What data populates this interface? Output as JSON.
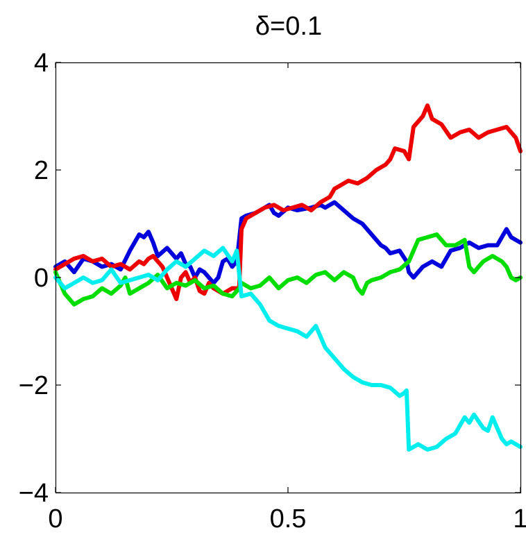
{
  "chart_data": {
    "type": "line",
    "title": "δ=0.1",
    "xlabel": "",
    "ylabel": "",
    "xlim": [
      0,
      1
    ],
    "ylim": [
      -4,
      4
    ],
    "xticks": [
      0,
      0.5,
      1
    ],
    "xtick_labels": [
      "0",
      "0.5",
      "1"
    ],
    "yticks": [
      -4,
      -2,
      0,
      2,
      4
    ],
    "ytick_labels": [
      "−4",
      "−2",
      "0",
      "2",
      "4"
    ],
    "grid": false,
    "legend": "none",
    "series": [
      {
        "color": "#0000dd",
        "x": [
          0,
          0.02,
          0.04,
          0.06,
          0.08,
          0.1,
          0.12,
          0.14,
          0.16,
          0.18,
          0.19,
          0.2,
          0.21,
          0.22,
          0.24,
          0.26,
          0.27,
          0.28,
          0.29,
          0.3,
          0.31,
          0.32,
          0.34,
          0.35,
          0.36,
          0.37,
          0.38,
          0.39,
          0.4,
          0.41,
          0.43,
          0.45,
          0.46,
          0.47,
          0.48,
          0.5,
          0.52,
          0.55,
          0.57,
          0.58,
          0.6,
          0.62,
          0.64,
          0.66,
          0.68,
          0.7,
          0.71,
          0.72,
          0.74,
          0.755,
          0.76,
          0.77,
          0.79,
          0.81,
          0.83,
          0.85,
          0.87,
          0.89,
          0.91,
          0.93,
          0.95,
          0.96,
          0.97,
          0.98,
          0.99,
          1.0
        ],
        "y": [
          0.2,
          0.3,
          0.1,
          0.35,
          0.3,
          0.2,
          0.25,
          0.15,
          0.5,
          0.8,
          0.75,
          0.85,
          0.65,
          0.4,
          0.55,
          0.35,
          0.45,
          0.25,
          0.2,
          0.0,
          0.15,
          0.1,
          -0.1,
          0.0,
          0.3,
          0.35,
          0.2,
          0.3,
          1.1,
          1.15,
          1.2,
          1.3,
          1.35,
          1.2,
          1.15,
          1.3,
          1.25,
          1.3,
          1.35,
          1.3,
          1.4,
          1.25,
          1.1,
          1.0,
          0.8,
          0.6,
          0.55,
          0.45,
          0.5,
          0.3,
          0.1,
          0.0,
          0.2,
          0.3,
          0.2,
          0.5,
          0.55,
          0.65,
          0.55,
          0.6,
          0.6,
          0.75,
          0.9,
          0.75,
          0.7,
          0.65
        ]
      },
      {
        "color": "#ee0000",
        "x": [
          0,
          0.02,
          0.04,
          0.06,
          0.08,
          0.1,
          0.12,
          0.14,
          0.16,
          0.18,
          0.19,
          0.2,
          0.21,
          0.22,
          0.23,
          0.24,
          0.25,
          0.26,
          0.27,
          0.28,
          0.29,
          0.3,
          0.31,
          0.32,
          0.33,
          0.34,
          0.36,
          0.38,
          0.395,
          0.4,
          0.41,
          0.43,
          0.45,
          0.47,
          0.49,
          0.51,
          0.53,
          0.55,
          0.57,
          0.59,
          0.6,
          0.61,
          0.63,
          0.65,
          0.67,
          0.69,
          0.71,
          0.72,
          0.73,
          0.75,
          0.76,
          0.77,
          0.79,
          0.8,
          0.81,
          0.83,
          0.85,
          0.87,
          0.89,
          0.91,
          0.93,
          0.95,
          0.97,
          0.99,
          1.0
        ],
        "y": [
          0.15,
          0.25,
          0.35,
          0.4,
          0.3,
          0.35,
          0.2,
          0.25,
          0.15,
          0.3,
          0.25,
          0.35,
          0.4,
          0.3,
          0.2,
          0.0,
          -0.2,
          -0.4,
          0.0,
          0.1,
          -0.1,
          0.0,
          -0.25,
          -0.3,
          -0.1,
          -0.2,
          -0.3,
          -0.2,
          -0.2,
          0.9,
          1.1,
          1.2,
          1.3,
          1.35,
          1.25,
          1.3,
          1.35,
          1.25,
          1.4,
          1.5,
          1.65,
          1.7,
          1.8,
          1.75,
          1.85,
          2.0,
          2.1,
          2.2,
          2.4,
          2.35,
          2.2,
          2.8,
          3.0,
          3.2,
          2.95,
          2.85,
          2.6,
          2.7,
          2.75,
          2.6,
          2.7,
          2.75,
          2.8,
          2.6,
          2.35
        ]
      },
      {
        "color": "#00dd00",
        "x": [
          0,
          0.01,
          0.02,
          0.04,
          0.06,
          0.08,
          0.1,
          0.12,
          0.14,
          0.15,
          0.16,
          0.18,
          0.2,
          0.22,
          0.24,
          0.26,
          0.28,
          0.3,
          0.32,
          0.34,
          0.36,
          0.38,
          0.395,
          0.4,
          0.42,
          0.44,
          0.46,
          0.47,
          0.48,
          0.5,
          0.52,
          0.54,
          0.56,
          0.58,
          0.6,
          0.62,
          0.64,
          0.65,
          0.66,
          0.67,
          0.68,
          0.7,
          0.72,
          0.74,
          0.76,
          0.78,
          0.8,
          0.82,
          0.84,
          0.86,
          0.88,
          0.89,
          0.9,
          0.92,
          0.94,
          0.96,
          0.97,
          0.98,
          0.99,
          1.0
        ],
        "y": [
          0.1,
          -0.1,
          -0.3,
          -0.5,
          -0.4,
          -0.35,
          -0.2,
          -0.3,
          -0.15,
          0.0,
          -0.3,
          -0.2,
          -0.1,
          0.05,
          -0.2,
          -0.1,
          -0.15,
          -0.05,
          -0.2,
          -0.15,
          -0.3,
          -0.35,
          -0.2,
          -0.1,
          -0.2,
          -0.15,
          0.0,
          -0.1,
          -0.2,
          -0.05,
          0.0,
          -0.1,
          0.05,
          0.1,
          -0.05,
          0.1,
          0.0,
          -0.2,
          -0.3,
          -0.1,
          -0.05,
          0.0,
          0.1,
          0.15,
          0.3,
          0.7,
          0.75,
          0.8,
          0.6,
          0.6,
          0.7,
          0.2,
          0.1,
          0.3,
          0.4,
          0.3,
          0.2,
          0.0,
          -0.05,
          0.0
        ]
      },
      {
        "color": "#00eeee",
        "x": [
          0,
          0.02,
          0.04,
          0.06,
          0.08,
          0.1,
          0.12,
          0.14,
          0.16,
          0.18,
          0.2,
          0.22,
          0.24,
          0.26,
          0.28,
          0.3,
          0.32,
          0.34,
          0.36,
          0.38,
          0.39,
          0.4,
          0.42,
          0.44,
          0.46,
          0.48,
          0.5,
          0.52,
          0.54,
          0.56,
          0.57,
          0.58,
          0.6,
          0.62,
          0.64,
          0.66,
          0.68,
          0.7,
          0.72,
          0.74,
          0.75,
          0.755,
          0.76,
          0.78,
          0.8,
          0.82,
          0.84,
          0.86,
          0.88,
          0.89,
          0.9,
          0.92,
          0.93,
          0.94,
          0.96,
          0.97,
          0.98,
          1.0
        ],
        "y": [
          0.0,
          -0.2,
          -0.1,
          0.0,
          -0.1,
          -0.05,
          0.15,
          -0.1,
          -0.05,
          0.0,
          0.05,
          -0.05,
          0.15,
          0.3,
          0.2,
          0.35,
          0.5,
          0.4,
          0.55,
          0.3,
          0.5,
          -0.35,
          -0.3,
          -0.5,
          -0.8,
          -0.9,
          -0.95,
          -1.0,
          -1.1,
          -0.9,
          -1.1,
          -1.3,
          -1.5,
          -1.7,
          -1.85,
          -1.95,
          -2.0,
          -2.0,
          -2.05,
          -2.2,
          -2.15,
          -2.1,
          -3.2,
          -3.1,
          -3.2,
          -3.15,
          -3.0,
          -2.9,
          -2.6,
          -2.7,
          -2.55,
          -2.8,
          -2.85,
          -2.6,
          -3.0,
          -3.1,
          -3.05,
          -3.15
        ]
      }
    ]
  }
}
